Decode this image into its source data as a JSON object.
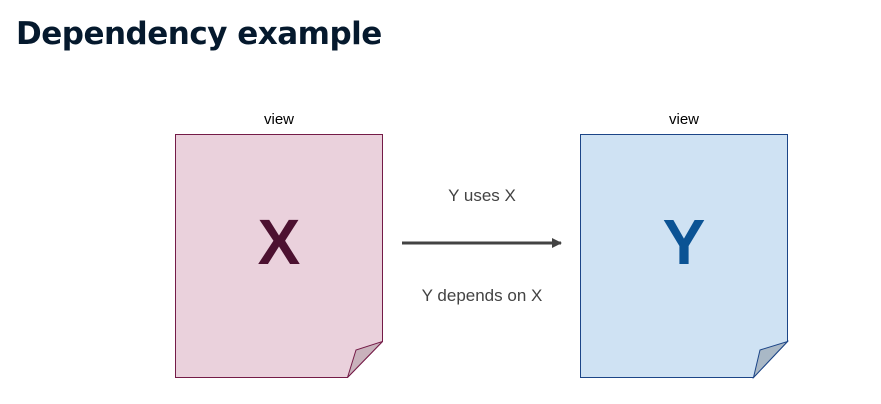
{
  "title": "Dependency example",
  "diagram": {
    "left_view": {
      "caption": "view",
      "letter": "X",
      "fill": "#ead1dc",
      "stroke": "#741b47",
      "fold_fill": "#c9b2bc",
      "letter_color": "#4c1130"
    },
    "right_view": {
      "caption": "view",
      "letter": "Y",
      "fill": "#cfe2f3",
      "stroke": "#1c4587",
      "fold_fill": "#a9b8c6",
      "letter_color": "#0b5394"
    },
    "arrow": {
      "label_top": "Y uses X",
      "label_bottom": "Y depends on X",
      "color": "#434343"
    },
    "text_color": "#434343"
  }
}
